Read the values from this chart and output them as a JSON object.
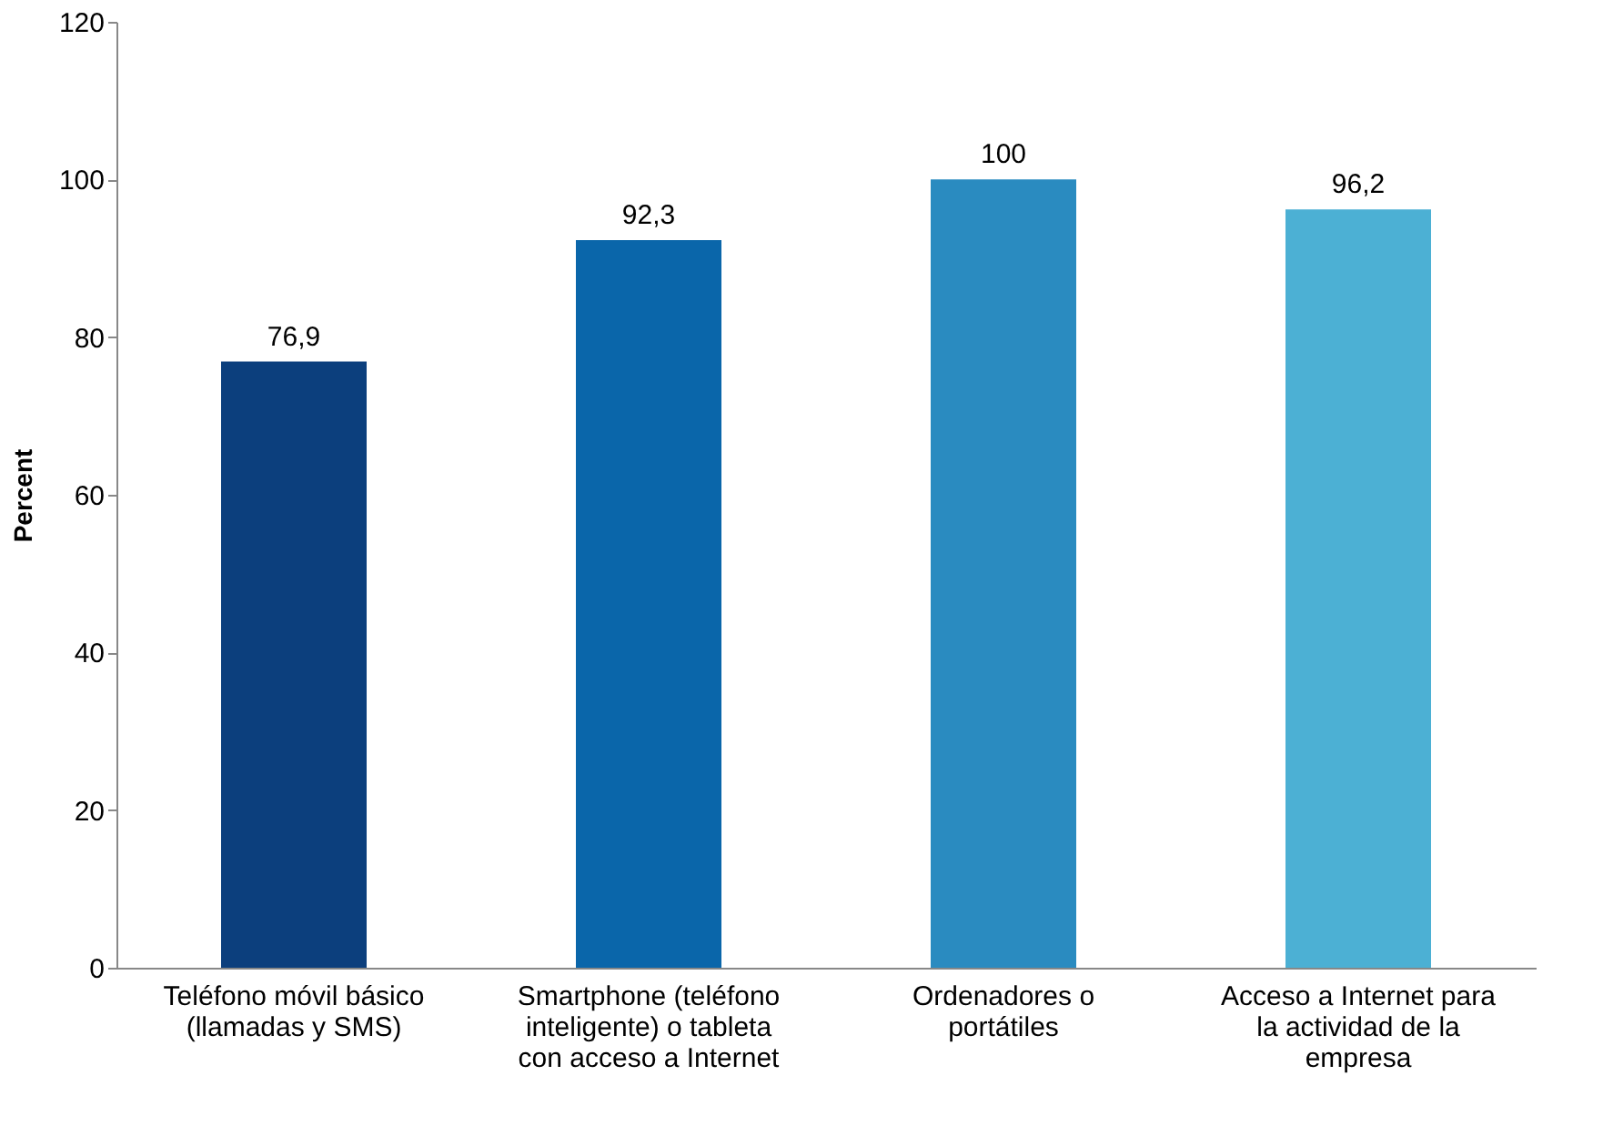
{
  "chart_data": {
    "type": "bar",
    "ylabel": "Percent",
    "categories": [
      "Teléfono móvil básico (llamadas y SMS)",
      "Smartphone (teléfono inteligente) o tableta con acceso a Internet",
      "Ordenadores o portátiles",
      "Acceso a Internet para la actividad de la empresa"
    ],
    "values": [
      76.9,
      92.3,
      100,
      96.2
    ],
    "colors": [
      "#0c3f7d",
      "#0a66aa",
      "#2a8bc0",
      "#4cb0d4"
    ],
    "value_labels": [
      "76,9",
      "92,3",
      "100",
      "96,2"
    ],
    "ylim": [
      0,
      120
    ],
    "yticks": [
      0,
      20,
      40,
      60,
      80,
      100,
      120
    ],
    "grid": false
  }
}
